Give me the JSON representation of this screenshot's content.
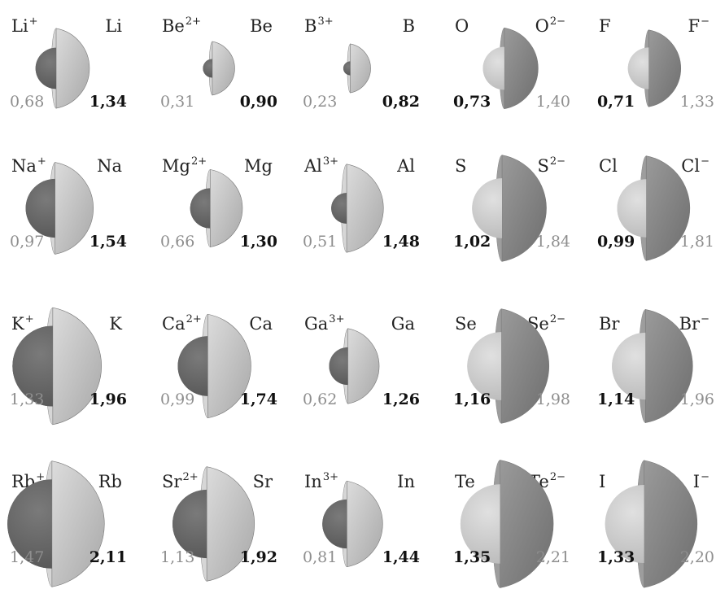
{
  "colors": {
    "cation_ball": "#7a7a7a",
    "anion_shell": "#8a8a8a",
    "light_shell": "#c9c9c9",
    "light_ball": "#e0e0e0",
    "dark_text": "#111111",
    "light_text": "#8e8e8e"
  },
  "items": [
    {
      "ion": "Li",
      "ion_charge": "+",
      "atom": "Li",
      "ion_radius": 0.68,
      "atom_radius": 1.34,
      "ion_radius_label": "0,68",
      "atom_radius_label": "1,34",
      "type": "cation"
    },
    {
      "ion": "Be",
      "ion_charge": "2+",
      "atom": "Be",
      "ion_radius": 0.31,
      "atom_radius": 0.9,
      "ion_radius_label": "0,31",
      "atom_radius_label": "0,90",
      "type": "cation"
    },
    {
      "ion": "B",
      "ion_charge": "3+",
      "atom": "B",
      "ion_radius": 0.23,
      "atom_radius": 0.82,
      "ion_radius_label": "0,23",
      "atom_radius_label": "0,82",
      "type": "cation"
    },
    {
      "atom": "O",
      "ion": "O",
      "ion_charge": "2−",
      "atom_radius": 0.73,
      "ion_radius": 1.4,
      "atom_radius_label": "0,73",
      "ion_radius_label": "1,40",
      "type": "anion"
    },
    {
      "atom": "F",
      "ion": "F",
      "ion_charge": "−",
      "atom_radius": 0.71,
      "ion_radius": 1.33,
      "atom_radius_label": "0,71",
      "ion_radius_label": "1,33",
      "type": "anion"
    },
    {
      "ion": "Na",
      "ion_charge": "+",
      "atom": "Na",
      "ion_radius": 0.97,
      "atom_radius": 1.54,
      "ion_radius_label": "0,97",
      "atom_radius_label": "1,54",
      "type": "cation"
    },
    {
      "ion": "Mg",
      "ion_charge": "2+",
      "atom": "Mg",
      "ion_radius": 0.66,
      "atom_radius": 1.3,
      "ion_radius_label": "0,66",
      "atom_radius_label": "1,30",
      "type": "cation"
    },
    {
      "ion": "Al",
      "ion_charge": "3+",
      "atom": "Al",
      "ion_radius": 0.51,
      "atom_radius": 1.48,
      "ion_radius_label": "0,51",
      "atom_radius_label": "1,48",
      "type": "cation"
    },
    {
      "atom": "S",
      "ion": "S",
      "ion_charge": "2−",
      "atom_radius": 1.02,
      "ion_radius": 1.84,
      "atom_radius_label": "1,02",
      "ion_radius_label": "1,84",
      "type": "anion"
    },
    {
      "atom": "Cl",
      "ion": "Cl",
      "ion_charge": "−",
      "atom_radius": 0.99,
      "ion_radius": 1.81,
      "atom_radius_label": "0,99",
      "ion_radius_label": "1,81",
      "type": "anion"
    },
    {
      "ion": "K",
      "ion_charge": "+",
      "atom": "K",
      "ion_radius": 1.33,
      "atom_radius": 1.96,
      "ion_radius_label": "1,33",
      "atom_radius_label": "1,96",
      "type": "cation"
    },
    {
      "ion": "Ca",
      "ion_charge": "2+",
      "atom": "Ca",
      "ion_radius": 0.99,
      "atom_radius": 1.74,
      "ion_radius_label": "0,99",
      "atom_radius_label": "1,74",
      "type": "cation"
    },
    {
      "ion": "Ga",
      "ion_charge": "3+",
      "atom": "Ga",
      "ion_radius": 0.62,
      "atom_radius": 1.26,
      "ion_radius_label": "0,62",
      "atom_radius_label": "1,26",
      "type": "cation"
    },
    {
      "atom": "Se",
      "ion": "Se",
      "ion_charge": "2−",
      "atom_radius": 1.16,
      "ion_radius": 1.98,
      "atom_radius_label": "1,16",
      "ion_radius_label": "1,98",
      "type": "anion"
    },
    {
      "atom": "Br",
      "ion": "Br",
      "ion_charge": "−",
      "atom_radius": 1.14,
      "ion_radius": 1.96,
      "atom_radius_label": "1,14",
      "ion_radius_label": "1,96",
      "type": "anion"
    },
    {
      "ion": "Rb",
      "ion_charge": "+",
      "atom": "Rb",
      "ion_radius": 1.47,
      "atom_radius": 2.11,
      "ion_radius_label": "1,47",
      "atom_radius_label": "2,11",
      "type": "cation"
    },
    {
      "ion": "Sr",
      "ion_charge": "2+",
      "atom": "Sr",
      "ion_radius": 1.13,
      "atom_radius": 1.92,
      "ion_radius_label": "1,13",
      "atom_radius_label": "1,92",
      "type": "cation"
    },
    {
      "ion": "In",
      "ion_charge": "3+",
      "atom": "In",
      "ion_radius": 0.81,
      "atom_radius": 1.44,
      "ion_radius_label": "0,81",
      "atom_radius_label": "1,44",
      "type": "cation"
    },
    {
      "atom": "Te",
      "ion": "Te",
      "ion_charge": "2−",
      "atom_radius": 1.35,
      "ion_radius": 2.21,
      "atom_radius_label": "1,35",
      "ion_radius_label": "2,21",
      "type": "anion"
    },
    {
      "atom": "I",
      "ion": "I",
      "ion_charge": "−",
      "atom_radius": 1.33,
      "ion_radius": 2.2,
      "atom_radius_label": "1,33",
      "ion_radius_label": "2,20",
      "type": "anion"
    }
  ]
}
